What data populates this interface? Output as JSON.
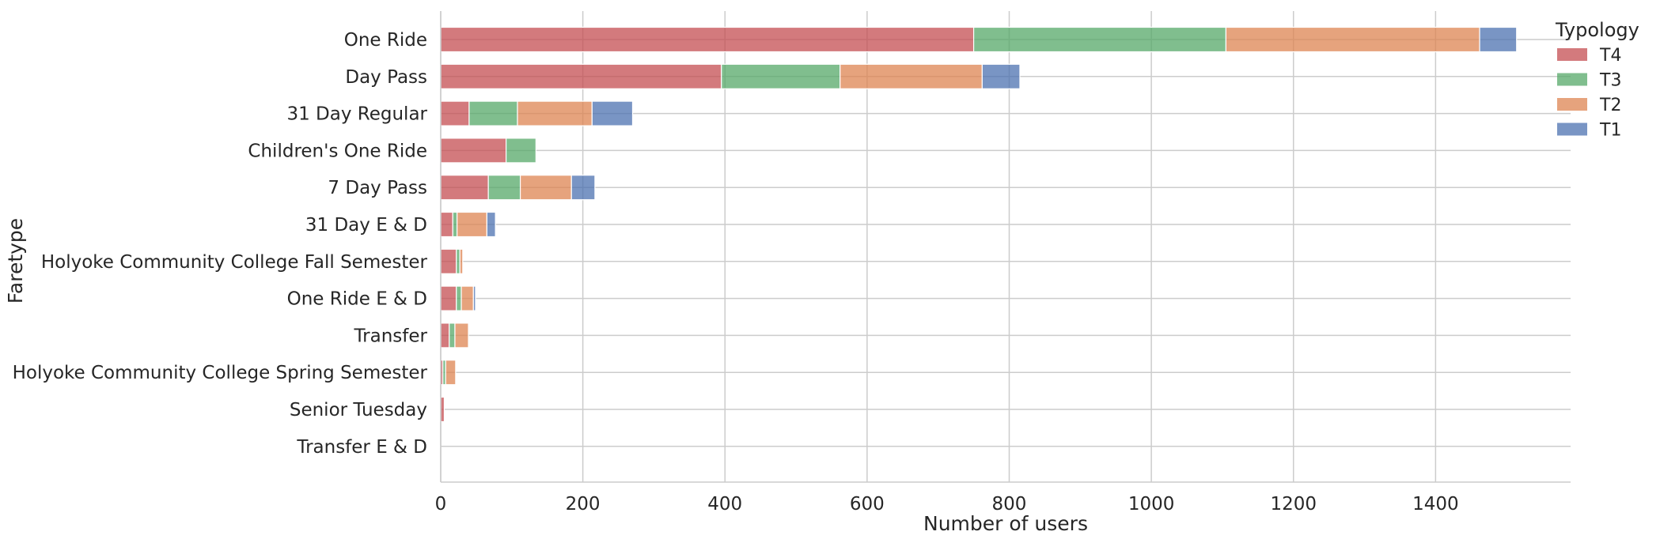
{
  "chart_data": {
    "type": "bar",
    "orientation": "horizontal",
    "stacked": true,
    "xlabel": "Number of users",
    "ylabel": "Faretype",
    "xlim": [
      0,
      1590
    ],
    "xticks": [
      0,
      200,
      400,
      600,
      800,
      1000,
      1200,
      1400
    ],
    "grid": true,
    "categories": [
      "One Ride",
      "Day Pass",
      "31 Day Regular",
      "Children's One Ride",
      "7 Day Pass",
      "31 Day E & D",
      "Holyoke Community College Fall Semester",
      "One Ride E & D",
      "Transfer",
      "Holyoke Community College Spring Semester",
      "Senior Tuesday",
      "Transfer E & D"
    ],
    "series": [
      {
        "name": "T4",
        "color": "#c44e52",
        "values": [
          750,
          395,
          40,
          92,
          67,
          17,
          22,
          22,
          12,
          3,
          5,
          0
        ]
      },
      {
        "name": "T3",
        "color": "#55a868",
        "values": [
          355,
          167,
          68,
          42,
          45,
          6,
          5,
          7,
          8,
          4,
          0,
          0
        ]
      },
      {
        "name": "T2",
        "color": "#dd8452",
        "values": [
          357,
          200,
          105,
          0,
          72,
          42,
          4,
          17,
          19,
          14,
          0,
          0
        ]
      },
      {
        "name": "T1",
        "color": "#4c72b0",
        "values": [
          52,
          53,
          57,
          0,
          33,
          12,
          0,
          3,
          0,
          0,
          0,
          0
        ]
      }
    ],
    "legend": {
      "title": "Typology",
      "position": "top-right"
    }
  }
}
